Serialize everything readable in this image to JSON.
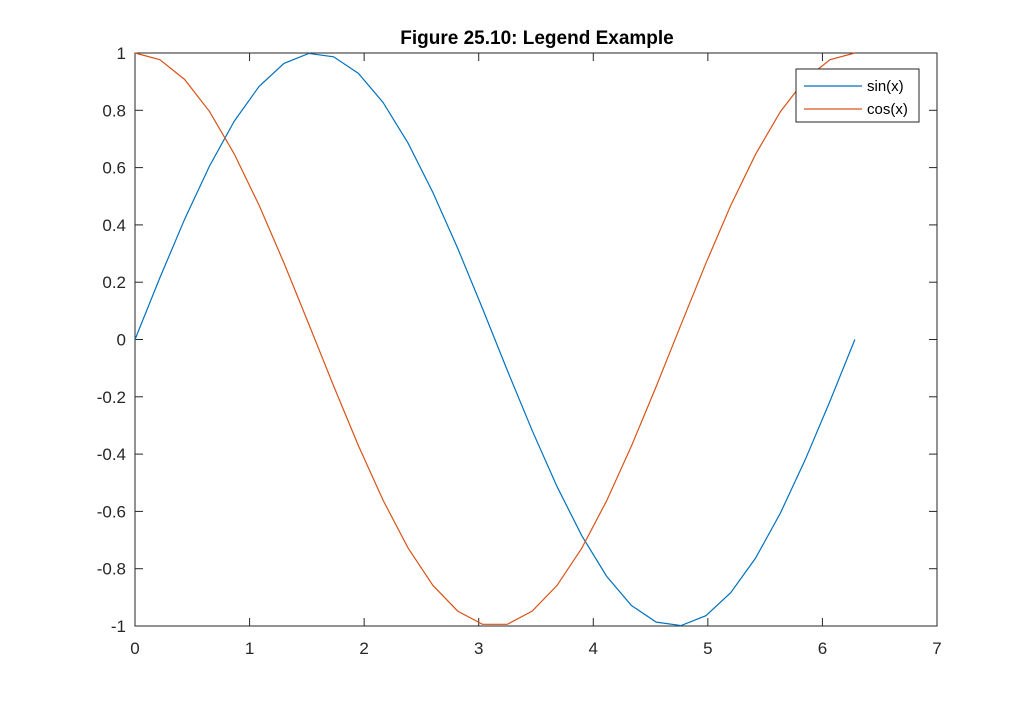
{
  "chart_data": {
    "type": "line",
    "title": "Figure 25.10: Legend Example",
    "xlabel": "",
    "ylabel": "",
    "xlim": [
      0,
      7
    ],
    "ylim": [
      -1,
      1
    ],
    "xticks": [
      "0",
      "1",
      "2",
      "3",
      "4",
      "5",
      "6",
      "7"
    ],
    "yticks": [
      "1",
      "0.8",
      "0.6",
      "0.4",
      "0.2",
      "0",
      "-0.2",
      "-0.4",
      "-0.6",
      "-0.8",
      "-1"
    ],
    "grid": false,
    "legend_position": "top-right",
    "x": [
      0,
      0.2166,
      0.4333,
      0.6499,
      0.8666,
      1.0832,
      1.2999,
      1.5165,
      1.7332,
      1.9498,
      2.1666,
      2.3831,
      2.5997,
      2.8164,
      3.033,
      3.2497,
      3.4663,
      3.683,
      3.8996,
      4.1163,
      4.3329,
      4.5496,
      4.7662,
      4.9829,
      5.1995,
      5.4162,
      5.6328,
      5.8495,
      6.0661,
      6.2832
    ],
    "series": [
      {
        "name": "sin(x)",
        "color": "#0072BD",
        "values": [
          0,
          0.215,
          0.4199,
          0.6052,
          0.7622,
          0.8835,
          0.9637,
          0.9985,
          0.9868,
          0.9289,
          0.8266,
          0.6855,
          0.5137,
          0.3186,
          0.1081,
          -0.1079,
          -0.3174,
          -0.5129,
          -0.6848,
          -0.8262,
          -0.9285,
          -0.9865,
          -0.9985,
          -0.964,
          -0.8839,
          -0.7632,
          -0.6061,
          -0.4199,
          -0.215,
          0
        ]
      },
      {
        "name": "cos(x)",
        "color": "#D95319",
        "values": [
          1,
          0.9766,
          0.9076,
          0.7961,
          0.6473,
          0.4684,
          0.2675,
          0.0541,
          -0.1618,
          -0.3705,
          -0.562,
          -0.7276,
          -0.8581,
          -0.948,
          -0.9941,
          -0.9941,
          -0.9483,
          -0.8587,
          -0.7284,
          -0.5631,
          -0.3717,
          -0.1635,
          0.0525,
          0.266,
          0.4676,
          0.6463,
          0.7951,
          0.9076,
          0.9766,
          1
        ]
      }
    ]
  }
}
